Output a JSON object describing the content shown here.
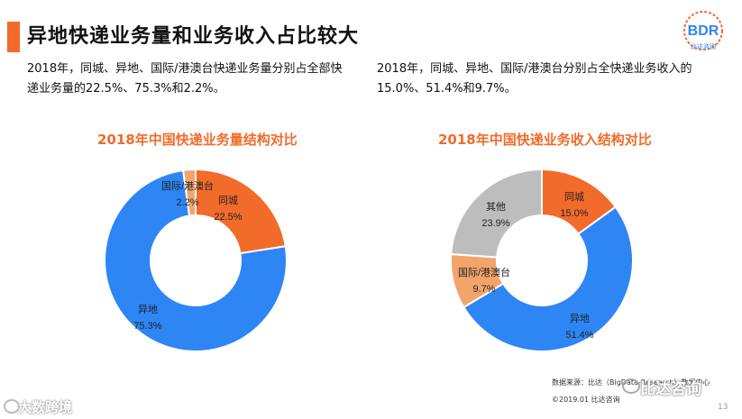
{
  "page": {
    "title": "异地快递业务量和业务收入占比较大",
    "logo_text": "BDR",
    "logo_subtext": "比达咨询",
    "desc_left": "2018年，同城、异地、国际/港澳台快递业务量分别占全部快递业务量的22.5%、75.3%和2.2%。",
    "desc_right": "2018年，同城、异地、国际/港澳台分别占全快递业务收入的15.0%、51.4%和9.7%。",
    "source": "数据来源：比达（BigData-Research）数据中心",
    "copyright": "©2019.01  比达咨询",
    "watermark_right": "比达咨询",
    "watermark_left": "大数跨境",
    "page_number": "13"
  },
  "colors": {
    "accent": "#f26b2a",
    "blue": "#2e86f5",
    "orange": "#f26b2a",
    "light_orange": "#f3a46a",
    "gray": "#bdbdbd"
  },
  "chart_data": [
    {
      "type": "pie",
      "variant": "donut",
      "title": "2018年中国快递业务量结构对比",
      "slices": [
        {
          "name": "同城",
          "value": 22.5,
          "label": "22.5%",
          "color": "#f26b2a"
        },
        {
          "name": "异地",
          "value": 75.3,
          "label": "75.3%",
          "color": "#2e86f5"
        },
        {
          "name": "国际/港澳台",
          "value": 2.2,
          "label": "2.2%",
          "color": "#f3a46a"
        }
      ]
    },
    {
      "type": "pie",
      "variant": "donut",
      "title": "2018年中国快递业务收入结构对比",
      "slices": [
        {
          "name": "同城",
          "value": 15.0,
          "label": "15.0%",
          "color": "#f26b2a"
        },
        {
          "name": "异地",
          "value": 51.4,
          "label": "51.4%",
          "color": "#2e86f5"
        },
        {
          "name": "国际/港澳台",
          "value": 9.7,
          "label": "9.7%",
          "color": "#f3a46a"
        },
        {
          "name": "其他",
          "value": 23.9,
          "label": "23.9%",
          "color": "#bdbdbd"
        }
      ]
    }
  ]
}
